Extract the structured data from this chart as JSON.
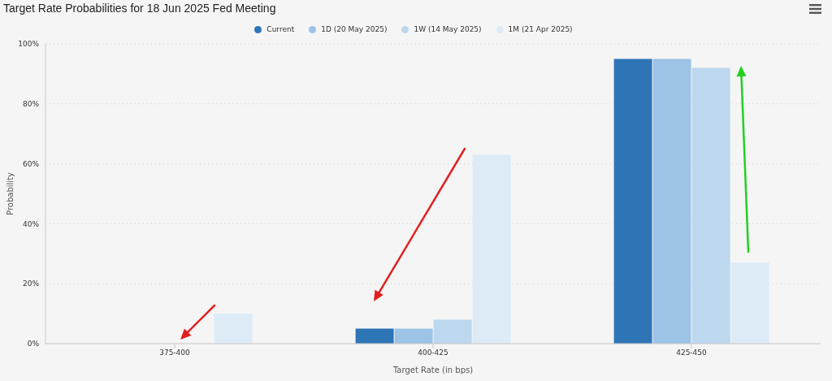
{
  "chart_data": {
    "type": "bar",
    "title": "Target Rate Probabilities for 18 Jun 2025 Fed Meeting",
    "xlabel": "Target Rate (in bps)",
    "ylabel": "Probability",
    "categories": [
      "375-400",
      "400-425",
      "425-450"
    ],
    "series": [
      {
        "name": "Current",
        "color": "#2e75b6",
        "values": [
          0,
          5,
          95
        ]
      },
      {
        "name": "1D (20 May 2025)",
        "color": "#9dc3e6",
        "values": [
          0,
          5,
          95
        ]
      },
      {
        "name": "1W (14 May 2025)",
        "color": "#bdd7ee",
        "values": [
          0,
          8,
          92
        ]
      },
      {
        "name": "1M (21 Apr 2025)",
        "color": "#ddebf7",
        "values": [
          10,
          63,
          27
        ]
      }
    ],
    "ylim": [
      0,
      100
    ],
    "yticks": [
      {
        "value": 0,
        "label": "0%"
      },
      {
        "value": 20,
        "label": "20%"
      },
      {
        "value": 40,
        "label": "40%"
      },
      {
        "value": 60,
        "label": "60%"
      },
      {
        "value": 80,
        "label": "80%"
      },
      {
        "value": 100,
        "label": "100%"
      }
    ],
    "grid": "y",
    "legend": "top"
  }
}
